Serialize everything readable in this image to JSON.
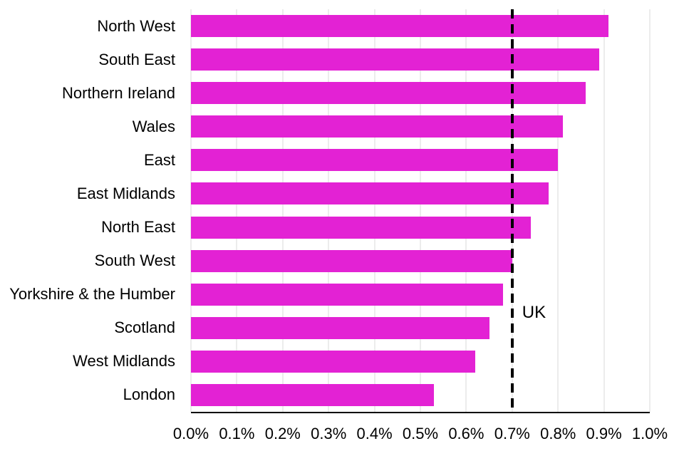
{
  "chart_data": {
    "type": "bar",
    "orientation": "horizontal",
    "title": "",
    "xlabel": "",
    "ylabel": "",
    "categories": [
      "North West",
      "South East",
      "Northern Ireland",
      "Wales",
      "East",
      "East Midlands",
      "North East",
      "South West",
      "Yorkshire & the Humber",
      "Scotland",
      "West Midlands",
      "London"
    ],
    "values": [
      0.91,
      0.89,
      0.86,
      0.81,
      0.8,
      0.78,
      0.74,
      0.7,
      0.68,
      0.65,
      0.62,
      0.53
    ],
    "value_unit": "%",
    "xlim": [
      0.0,
      1.0
    ],
    "x_ticks": [
      "0.0%",
      "0.1%",
      "0.2%",
      "0.3%",
      "0.4%",
      "0.5%",
      "0.6%",
      "0.7%",
      "0.8%",
      "0.9%",
      "1.0%"
    ],
    "reference_line": {
      "label": "UK",
      "value": 0.7
    },
    "grid": true,
    "legend_position": "none",
    "colors": {
      "bar": "#E322D4",
      "gridline": "#D9D9D9",
      "axis_line": "#000000",
      "reference_line": "#000000",
      "text": "#000000"
    }
  }
}
